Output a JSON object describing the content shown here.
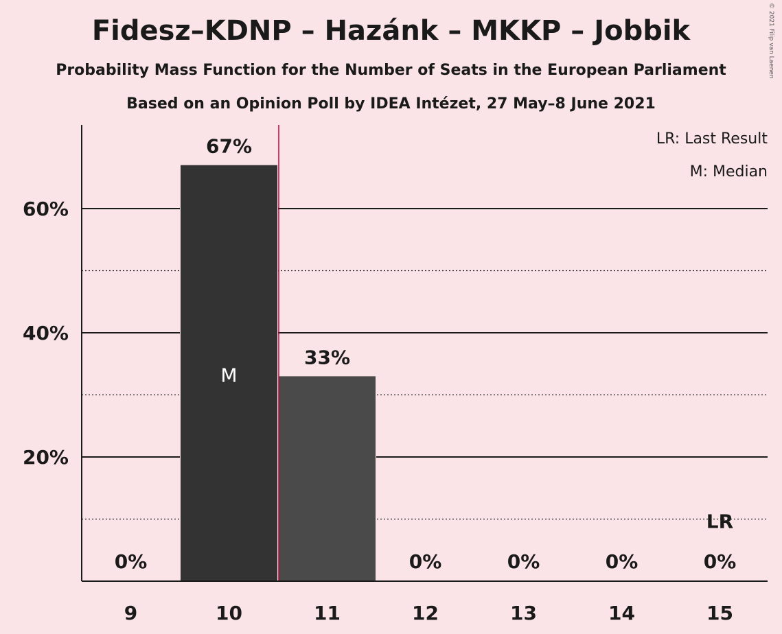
{
  "title": "Fidesz–KDNP – Hazánk – MKKP – Jobbik",
  "subtitle": "Probability Mass Function for the Number of Seats in the European Parliament",
  "subtitle2": "Based on an Opinion Poll by IDEA Intézet, 27 May–8 June 2021",
  "copyright": "© 2021 Filip van Laenen",
  "legend": {
    "last_result": "LR: Last Result",
    "median": "M: Median"
  },
  "chart_data": {
    "type": "bar",
    "categories": [
      "9",
      "10",
      "11",
      "12",
      "13",
      "14",
      "15"
    ],
    "values": [
      0,
      67,
      33,
      0,
      0,
      0,
      0
    ],
    "value_labels": [
      "0%",
      "67%",
      "33%",
      "0%",
      "0%",
      "0%",
      "0%"
    ],
    "ylim": [
      0,
      73
    ],
    "yticks": [
      {
        "value": 20,
        "label": "20%"
      },
      {
        "value": 40,
        "label": "40%"
      },
      {
        "value": 60,
        "label": "60%"
      }
    ],
    "minor_gridlines": [
      10,
      30,
      50
    ],
    "median_category": "10",
    "median_marker": "M",
    "last_result_category": "15",
    "last_result_marker": "LR",
    "majority_line_after": "10",
    "colors": {
      "bar_median": "#333333",
      "bar_other": "#4a4a4a",
      "majority_line": "#c0003a",
      "background": "#fbe4e8"
    }
  }
}
